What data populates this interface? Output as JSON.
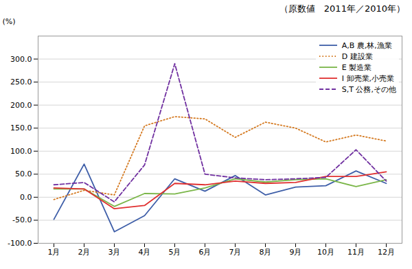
{
  "chart_data": {
    "type": "line",
    "title": "（原数値　2011年／2010年）",
    "ylabel": "(%)",
    "categories": [
      "1月",
      "2月",
      "3月",
      "4月",
      "5月",
      "6月",
      "7月",
      "8月",
      "9月",
      "10月",
      "11月",
      "12月"
    ],
    "series": [
      {
        "name": "A,B 農,林,漁業",
        "color": "#3e5ea8",
        "line_style": "solid",
        "values": [
          -48,
          72,
          -75,
          -40,
          40,
          13,
          47,
          5,
          22,
          25,
          57,
          30
        ]
      },
      {
        "name": "D 建設業",
        "color": "#d4781e",
        "line_style": "dotted",
        "values": [
          -5,
          15,
          5,
          155,
          175,
          170,
          130,
          163,
          150,
          120,
          135,
          122
        ]
      },
      {
        "name": "E 製造業",
        "color": "#7ab648",
        "line_style": "solid",
        "values": [
          18,
          18,
          -20,
          8,
          7,
          20,
          40,
          33,
          38,
          40,
          23,
          38
        ]
      },
      {
        "name": "I 卸売業,小売業",
        "color": "#e03030",
        "line_style": "solid",
        "values": [
          20,
          18,
          -25,
          -18,
          30,
          27,
          35,
          30,
          32,
          45,
          45,
          55
        ]
      },
      {
        "name": "S,T 公務,その他",
        "color": "#7030a0",
        "line_style": "dashed",
        "values": [
          27,
          32,
          -10,
          70,
          290,
          50,
          42,
          38,
          40,
          43,
          103,
          35
        ]
      }
    ],
    "ylim": [
      -100,
      350
    ],
    "yticks": [
      {
        "value": -100,
        "label": "-100.0"
      },
      {
        "value": -50,
        "label": "-50.0"
      },
      {
        "value": 0,
        "label": "0.0"
      },
      {
        "value": 50,
        "label": "50.0"
      },
      {
        "value": 100,
        "label": "100.0"
      },
      {
        "value": 150,
        "label": "150.0"
      },
      {
        "value": 200,
        "label": "200.0"
      },
      {
        "value": 250,
        "label": "250.0"
      },
      {
        "value": 300,
        "label": "300.0"
      }
    ],
    "grid": true,
    "legend": "upper right"
  }
}
